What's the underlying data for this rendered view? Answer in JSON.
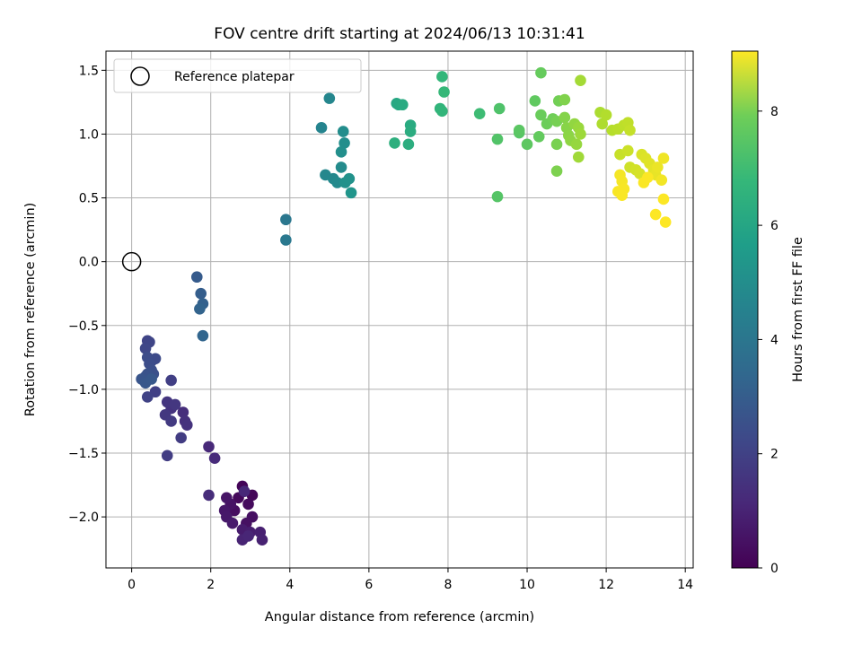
{
  "chart_data": {
    "type": "scatter",
    "title": "FOV centre drift starting at 2024/06/13 10:31:41",
    "xlabel": "Angular distance from reference (arcmin)",
    "ylabel": "Rotation from reference (arcmin)",
    "xlim": [
      -0.65,
      14.2
    ],
    "ylim": [
      -2.4,
      1.65
    ],
    "xticks": [
      0,
      2,
      4,
      6,
      8,
      10,
      12,
      14
    ],
    "yticks": [
      -2.0,
      -1.5,
      -1.0,
      -0.5,
      0.0,
      0.5,
      1.0,
      1.5
    ],
    "xtick_labels": [
      "0",
      "2",
      "4",
      "6",
      "8",
      "10",
      "12",
      "14"
    ],
    "ytick_labels": [
      "−2.0",
      "−1.5",
      "−1.0",
      "−0.5",
      "0.0",
      "0.5",
      "1.0",
      "1.5"
    ],
    "grid": true,
    "legend": {
      "placement": "upper-left",
      "entries": [
        "Reference platepar"
      ]
    },
    "colorbar": {
      "label": "Hours from first FF file",
      "range": [
        0,
        9.05
      ],
      "ticks": [
        0,
        2,
        4,
        6,
        8
      ],
      "tick_labels": [
        "0",
        "2",
        "4",
        "6",
        "8"
      ],
      "colormap": "viridis"
    },
    "reference_point": {
      "x": 0,
      "y": 0
    },
    "points": [
      [
        2.8,
        -1.76,
        0.1
      ],
      [
        3.05,
        -1.83,
        0.15
      ],
      [
        2.7,
        -1.85,
        0.2
      ],
      [
        2.95,
        -1.9,
        0.25
      ],
      [
        2.6,
        -1.95,
        0.3
      ],
      [
        3.05,
        -2.0,
        0.35
      ],
      [
        2.9,
        -2.05,
        0.4
      ],
      [
        2.5,
        -1.9,
        0.45
      ],
      [
        2.4,
        -1.85,
        0.5
      ],
      [
        2.35,
        -1.95,
        0.55
      ],
      [
        2.4,
        -2.0,
        0.6
      ],
      [
        2.55,
        -2.05,
        0.65
      ],
      [
        2.8,
        -2.1,
        0.7
      ],
      [
        3.0,
        -2.12,
        0.75
      ],
      [
        3.25,
        -2.12,
        0.8
      ],
      [
        3.3,
        -2.18,
        0.85
      ],
      [
        2.8,
        -2.18,
        0.9
      ],
      [
        2.95,
        -2.15,
        0.95
      ],
      [
        2.85,
        -1.8,
        1.0
      ],
      [
        1.95,
        -1.45,
        1.05
      ],
      [
        2.1,
        -1.54,
        1.1
      ],
      [
        1.95,
        -1.83,
        1.15
      ],
      [
        1.3,
        -1.18,
        1.2
      ],
      [
        1.35,
        -1.25,
        1.25
      ],
      [
        1.4,
        -1.28,
        1.3
      ],
      [
        1.0,
        -1.15,
        1.35
      ],
      [
        0.9,
        -1.1,
        1.4
      ],
      [
        1.1,
        -1.12,
        1.45
      ],
      [
        0.85,
        -1.2,
        1.5
      ],
      [
        1.0,
        -1.25,
        1.55
      ],
      [
        1.25,
        -1.38,
        1.6
      ],
      [
        0.9,
        -1.52,
        1.65
      ],
      [
        1.0,
        -0.93,
        1.7
      ],
      [
        0.6,
        -1.02,
        1.75
      ],
      [
        0.4,
        -1.06,
        1.8
      ],
      [
        0.4,
        -0.62,
        1.85
      ],
      [
        0.45,
        -0.63,
        1.9
      ],
      [
        0.35,
        -0.68,
        1.95
      ],
      [
        0.5,
        -0.78,
        2.0
      ],
      [
        0.6,
        -0.76,
        2.05
      ],
      [
        0.4,
        -0.75,
        2.1
      ],
      [
        0.45,
        -0.8,
        2.15
      ],
      [
        0.5,
        -0.85,
        2.2
      ],
      [
        0.55,
        -0.88,
        2.25
      ],
      [
        0.4,
        -0.88,
        2.3
      ],
      [
        0.35,
        -0.9,
        2.35
      ],
      [
        0.25,
        -0.92,
        2.4
      ],
      [
        0.35,
        -0.95,
        2.45
      ],
      [
        0.5,
        -0.92,
        2.5
      ],
      [
        1.65,
        -0.12,
        2.6
      ],
      [
        1.75,
        -0.25,
        2.7
      ],
      [
        1.8,
        -0.33,
        2.8
      ],
      [
        1.72,
        -0.37,
        2.9
      ],
      [
        1.8,
        -0.58,
        2.95
      ],
      [
        3.9,
        0.33,
        3.6
      ],
      [
        3.9,
        0.17,
        3.65
      ],
      [
        4.8,
        1.05,
        4.1
      ],
      [
        5.0,
        1.28,
        4.15
      ],
      [
        4.9,
        0.68,
        4.2
      ],
      [
        5.1,
        0.65,
        4.25
      ],
      [
        5.2,
        0.62,
        4.3
      ],
      [
        5.3,
        0.74,
        4.35
      ],
      [
        5.35,
        1.02,
        4.4
      ],
      [
        5.38,
        0.93,
        4.45
      ],
      [
        5.3,
        0.86,
        4.5
      ],
      [
        5.4,
        0.62,
        4.55
      ],
      [
        5.5,
        0.65,
        4.6
      ],
      [
        5.55,
        0.54,
        4.7
      ],
      [
        6.7,
        1.24,
        5.4
      ],
      [
        6.75,
        1.23,
        5.45
      ],
      [
        6.85,
        1.23,
        5.5
      ],
      [
        7.05,
        1.07,
        5.55
      ],
      [
        7.05,
        1.02,
        5.6
      ],
      [
        7.0,
        0.92,
        5.65
      ],
      [
        6.65,
        0.93,
        5.7
      ],
      [
        7.8,
        1.2,
        5.9
      ],
      [
        7.85,
        1.18,
        5.95
      ],
      [
        7.85,
        1.45,
        6.0
      ],
      [
        7.9,
        1.33,
        6.05
      ],
      [
        8.8,
        1.16,
        6.2
      ],
      [
        9.3,
        1.2,
        6.5
      ],
      [
        9.25,
        0.96,
        6.55
      ],
      [
        9.25,
        0.51,
        6.6
      ],
      [
        9.8,
        1.01,
        6.65
      ],
      [
        9.8,
        1.03,
        6.7
      ],
      [
        10.0,
        0.92,
        6.75
      ],
      [
        10.2,
        1.26,
        6.8
      ],
      [
        10.3,
        0.98,
        6.85
      ],
      [
        10.35,
        1.48,
        6.9
      ],
      [
        10.35,
        1.15,
        6.95
      ],
      [
        10.5,
        1.08,
        7.0
      ],
      [
        10.65,
        1.12,
        7.05
      ],
      [
        10.8,
        1.26,
        7.1
      ],
      [
        10.75,
        1.1,
        7.15
      ],
      [
        10.75,
        0.92,
        7.2
      ],
      [
        10.75,
        0.71,
        7.25
      ],
      [
        10.95,
        1.27,
        7.3
      ],
      [
        10.95,
        1.13,
        7.35
      ],
      [
        11.0,
        1.05,
        7.4
      ],
      [
        11.05,
        0.99,
        7.45
      ],
      [
        11.1,
        0.95,
        7.5
      ],
      [
        11.2,
        1.08,
        7.55
      ],
      [
        11.25,
        0.92,
        7.6
      ],
      [
        11.3,
        1.05,
        7.65
      ],
      [
        11.35,
        1.0,
        7.7
      ],
      [
        11.3,
        0.82,
        7.75
      ],
      [
        11.35,
        1.42,
        7.8
      ],
      [
        11.85,
        1.17,
        7.9
      ],
      [
        11.9,
        1.08,
        7.95
      ],
      [
        12.0,
        1.15,
        8.0
      ],
      [
        12.15,
        1.03,
        8.05
      ],
      [
        12.3,
        1.04,
        8.1
      ],
      [
        12.45,
        1.07,
        8.15
      ],
      [
        12.55,
        1.09,
        8.2
      ],
      [
        12.6,
        1.03,
        8.25
      ],
      [
        12.35,
        0.84,
        8.3
      ],
      [
        12.55,
        0.87,
        8.35
      ],
      [
        12.6,
        0.74,
        8.4
      ],
      [
        12.75,
        0.72,
        8.45
      ],
      [
        12.85,
        0.69,
        8.5
      ],
      [
        12.9,
        0.84,
        8.55
      ],
      [
        13.0,
        0.81,
        8.6
      ],
      [
        13.1,
        0.77,
        8.65
      ],
      [
        13.2,
        0.72,
        8.7
      ],
      [
        13.25,
        0.68,
        8.75
      ],
      [
        13.3,
        0.74,
        8.8
      ],
      [
        13.45,
        0.81,
        8.85
      ],
      [
        13.4,
        0.64,
        8.9
      ],
      [
        12.35,
        0.68,
        8.92
      ],
      [
        12.4,
        0.63,
        8.94
      ],
      [
        12.45,
        0.57,
        8.96
      ],
      [
        12.3,
        0.55,
        8.98
      ],
      [
        12.4,
        0.52,
        9.0
      ],
      [
        12.95,
        0.62,
        9.01
      ],
      [
        13.05,
        0.66,
        9.02
      ],
      [
        13.25,
        0.37,
        9.03
      ],
      [
        13.45,
        0.49,
        9.04
      ],
      [
        13.5,
        0.31,
        9.05
      ]
    ]
  },
  "colors": {
    "grid": "#b0b0b0",
    "axes": "#000000",
    "background": "#ffffff"
  }
}
